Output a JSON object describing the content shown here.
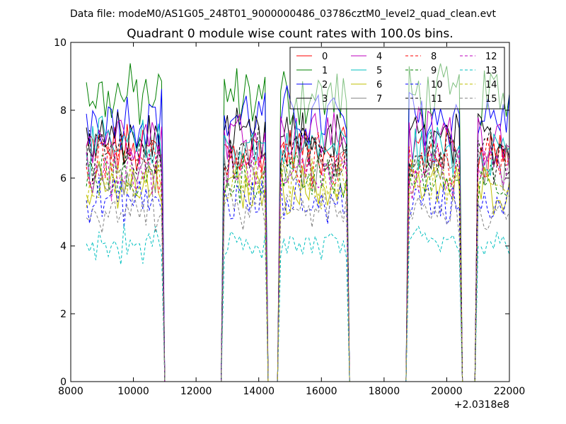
{
  "header": {
    "data_file": "Data file: modeM0/AS1G05_248T01_9000000486_03786cztM0_level2_quad_clean.evt"
  },
  "chart_data": {
    "type": "line",
    "title": "Quadrant 0 module wise count rates with 100.0s bins.",
    "xlabel": "",
    "ylabel": "",
    "x_offset_label": "+2.0318e8",
    "xlim": [
      8000,
      22000
    ],
    "ylim": [
      0,
      10
    ],
    "x_ticks": [
      "8000",
      "10000",
      "12000",
      "14000",
      "16000",
      "18000",
      "20000",
      "22000"
    ],
    "y_ticks": [
      "0",
      "2",
      "4",
      "6",
      "8",
      "10"
    ],
    "grid": false,
    "legend_position": "top-right",
    "segments": [
      [
        8500,
        10900
      ],
      [
        12900,
        14200
      ],
      [
        14700,
        16800
      ],
      [
        18800,
        20400
      ],
      [
        21000,
        22000
      ]
    ],
    "series": [
      {
        "name": "0",
        "color": "#ff0000",
        "dash": "solid",
        "level": 6.8
      },
      {
        "name": "1",
        "color": "#008000",
        "dash": "solid",
        "level": 8.4
      },
      {
        "name": "2",
        "color": "#0000ff",
        "dash": "solid",
        "level": 7.8
      },
      {
        "name": "3",
        "color": "#000000",
        "dash": "solid",
        "level": 7.1
      },
      {
        "name": "4",
        "color": "#bf00bf",
        "dash": "solid",
        "level": 7.3
      },
      {
        "name": "5",
        "color": "#00bfbf",
        "dash": "solid",
        "level": 6.9
      },
      {
        "name": "6",
        "color": "#bfbf00",
        "dash": "solid",
        "level": 5.7
      },
      {
        "name": "7",
        "color": "#808080",
        "dash": "solid",
        "level": 6.3
      },
      {
        "name": "8",
        "color": "#ff0000",
        "dash": "dashed",
        "level": 6.5
      },
      {
        "name": "9",
        "color": "#008000",
        "dash": "dashed",
        "level": 6.0
      },
      {
        "name": "10",
        "color": "#0000ff",
        "dash": "dashed",
        "level": 5.3
      },
      {
        "name": "11",
        "color": "#000000",
        "dash": "dashed",
        "level": 6.7
      },
      {
        "name": "12",
        "color": "#bf00bf",
        "dash": "dashed",
        "level": 6.2
      },
      {
        "name": "13",
        "color": "#00bfbf",
        "dash": "dashed",
        "level": 4.0
      },
      {
        "name": "14",
        "color": "#bfbf00",
        "dash": "dashed",
        "level": 5.8
      },
      {
        "name": "15",
        "color": "#808080",
        "dash": "dashed",
        "level": 5.0
      }
    ]
  }
}
